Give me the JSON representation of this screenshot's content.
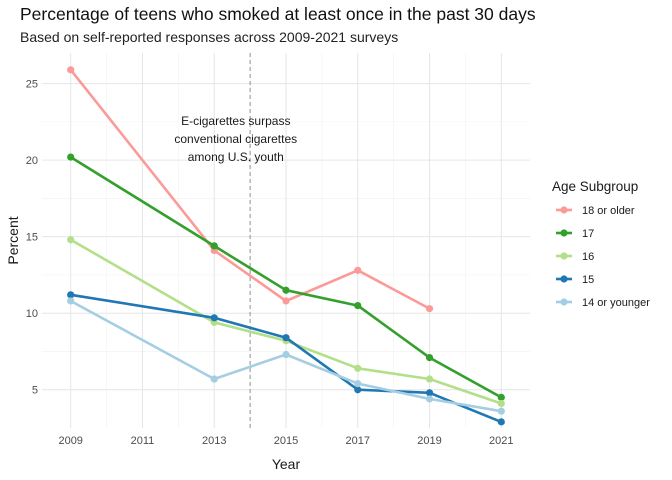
{
  "title": "Percentage of teens who smoked at least once in the past 30 days",
  "subtitle": "Based on self-reported responses across 2009-2021 surveys",
  "chart_data": {
    "type": "line",
    "xlabel": "Year",
    "ylabel": "Percent",
    "xlim": [
      2008.2,
      2021.8
    ],
    "ylim": [
      2.5,
      27
    ],
    "x_ticks": [
      2009,
      2011,
      2013,
      2015,
      2017,
      2019,
      2021
    ],
    "y_ticks": [
      5,
      10,
      15,
      20,
      25
    ],
    "grid": true,
    "vline": {
      "x": 2014,
      "style": "dashed"
    },
    "annotation": {
      "lines": [
        "E-cigarettes surpass",
        "conventional cigarettes",
        "among U.S. youth"
      ],
      "x": 2013.6,
      "y": 22.3
    },
    "legend": {
      "title": "Age Subgroup",
      "position": "right"
    },
    "series": [
      {
        "name": "18 or older",
        "color": "#fb9a99",
        "x": [
          2009,
          2013,
          2015,
          2017,
          2019
        ],
        "values": [
          25.9,
          14.1,
          10.8,
          12.8,
          10.3
        ]
      },
      {
        "name": "17",
        "color": "#33a02c",
        "x": [
          2009,
          2013,
          2015,
          2017,
          2019,
          2021
        ],
        "values": [
          20.2,
          14.4,
          11.5,
          10.5,
          7.1,
          4.5
        ]
      },
      {
        "name": "16",
        "color": "#b2df8a",
        "x": [
          2009,
          2013,
          2015,
          2017,
          2019,
          2021
        ],
        "values": [
          14.8,
          9.4,
          8.2,
          6.4,
          5.7,
          4.1
        ]
      },
      {
        "name": "15",
        "color": "#1f78b4",
        "x": [
          2009,
          2013,
          2015,
          2017,
          2019,
          2021
        ],
        "values": [
          11.2,
          9.7,
          8.4,
          5.0,
          4.8,
          2.9
        ]
      },
      {
        "name": "14 or younger",
        "color": "#a6cee3",
        "x": [
          2009,
          2013,
          2015,
          2017,
          2019,
          2021
        ],
        "values": [
          10.8,
          5.7,
          7.3,
          5.4,
          4.4,
          3.6
        ]
      }
    ]
  }
}
